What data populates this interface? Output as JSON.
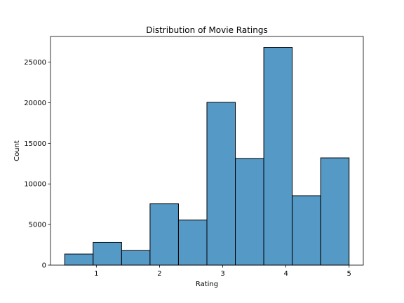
{
  "chart_data": {
    "type": "bar",
    "subtype": "histogram",
    "title": "Distribution of Movie Ratings",
    "xlabel": "Rating",
    "ylabel": "Count",
    "bins": [
      {
        "x0": 0.5,
        "x1": 0.95,
        "count": 1370
      },
      {
        "x0": 0.95,
        "x1": 1.4,
        "count": 2810
      },
      {
        "x0": 1.4,
        "x1": 1.85,
        "count": 1790
      },
      {
        "x0": 1.85,
        "x1": 2.3,
        "count": 7550
      },
      {
        "x0": 2.3,
        "x1": 2.75,
        "count": 5550
      },
      {
        "x0": 2.75,
        "x1": 3.2,
        "count": 20050
      },
      {
        "x0": 3.2,
        "x1": 3.65,
        "count": 13140
      },
      {
        "x0": 3.65,
        "x1": 4.1,
        "count": 26820
      },
      {
        "x0": 4.1,
        "x1": 4.55,
        "count": 8550
      },
      {
        "x0": 4.55,
        "x1": 5.0,
        "count": 13210
      }
    ],
    "xlim": [
      0.275,
      5.225
    ],
    "ylim": [
      0,
      28160
    ],
    "xticks": [
      1,
      2,
      3,
      4,
      5
    ],
    "xtick_labels": [
      "1",
      "2",
      "3",
      "4",
      "5"
    ],
    "yticks": [
      0,
      5000,
      10000,
      15000,
      20000,
      25000
    ],
    "ytick_labels": [
      "0",
      "5000",
      "10000",
      "15000",
      "20000",
      "25000"
    ],
    "grid": false,
    "colors": {
      "bar_fill": "#5599c7",
      "bar_edge": "#000000"
    }
  }
}
